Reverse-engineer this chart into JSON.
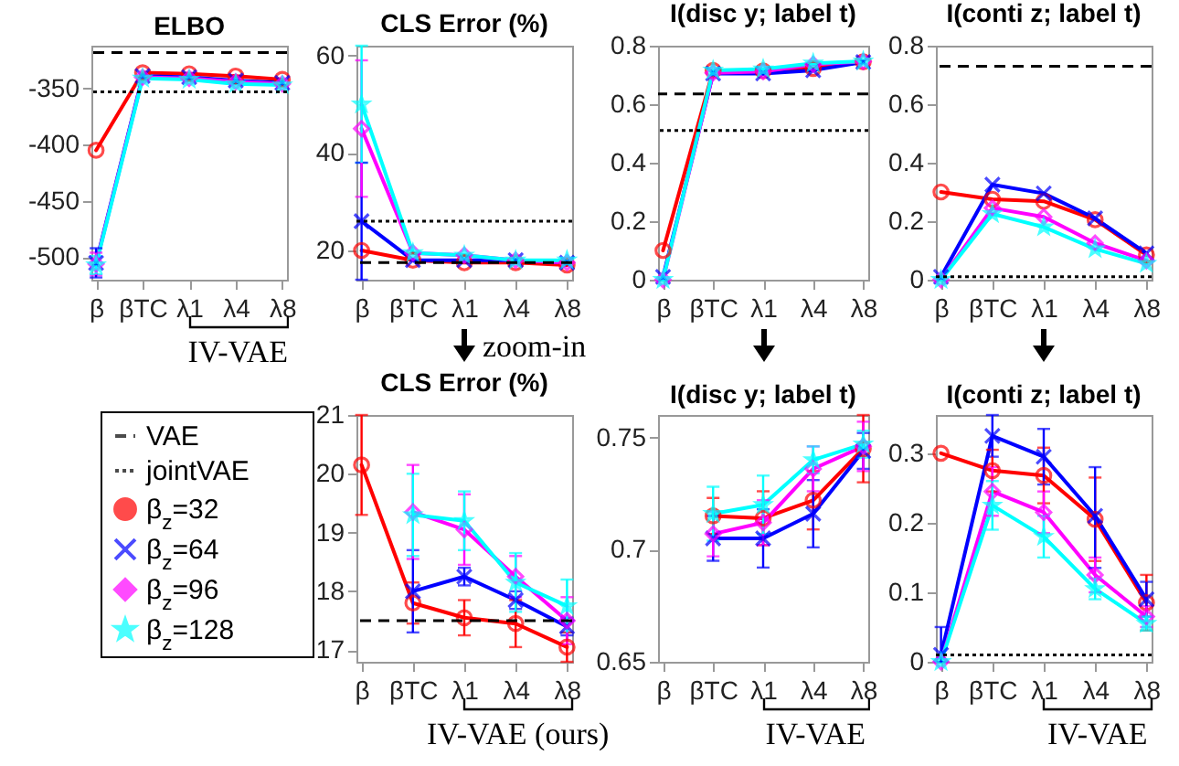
{
  "chart_data": [
    {
      "type": "line",
      "title": "ELBO",
      "categories": [
        "β",
        "βTC",
        "λ1",
        "λ4",
        "λ8"
      ],
      "ylim": [
        -520,
        -312
      ],
      "yticks": [
        -500,
        -450,
        -400,
        -350
      ],
      "annotations": [
        "IV-VAE"
      ],
      "ref_lines": [
        {
          "axis": "y",
          "value": -318,
          "color": "#000000",
          "line_style": "dashed"
        },
        {
          "axis": "y",
          "value": -353,
          "color": "#000000",
          "line_style": "dotted"
        }
      ],
      "series": [
        {
          "color": "#ff0000",
          "marker": "circle",
          "values": [
            -405,
            -336,
            -337,
            -339,
            -342
          ]
        },
        {
          "color": "#0000ff",
          "marker": "cross",
          "values": [
            -505,
            -339,
            -340,
            -343,
            -345
          ],
          "errors": [
            13,
            null,
            null,
            null,
            null
          ]
        },
        {
          "color": "#ff00ff",
          "marker": "diamond",
          "values": [
            -506,
            -340,
            -341,
            -344,
            -346
          ],
          "errors": [
            10,
            null,
            null,
            null,
            null
          ]
        },
        {
          "color": "#00ffff",
          "marker": "star",
          "values": [
            -507,
            -341,
            -342,
            -346,
            -347
          ],
          "errors": [
            8,
            null,
            null,
            null,
            null
          ]
        }
      ]
    },
    {
      "type": "line",
      "title": "CLS Error (%)",
      "categories": [
        "β",
        "βTC",
        "λ1",
        "λ4",
        "λ8"
      ],
      "ylim": [
        14,
        62
      ],
      "yticks": [
        20,
        40,
        60
      ],
      "annotations": [
        "zoom-in"
      ],
      "legend": "bottom left",
      "ref_lines": [
        {
          "axis": "y",
          "value": 17.5,
          "label": "VAE",
          "color": "#000000",
          "line_style": "dashed"
        },
        {
          "axis": "y",
          "value": 26,
          "label": "jointVAE",
          "color": "#000000",
          "line_style": "dotted"
        }
      ],
      "series": [
        {
          "name": "β$_{z}$=32",
          "color": "#ff0000",
          "marker": "circle",
          "values": [
            20,
            18,
            17.5,
            17.5,
            17
          ]
        },
        {
          "name": "β$_{z}$=64",
          "color": "#0000ff",
          "marker": "cross",
          "values": [
            26,
            18,
            18,
            18,
            17.5
          ],
          "errors": [
            12,
            null,
            null,
            null,
            null
          ]
        },
        {
          "name": "β$_{z}$=96",
          "color": "#ff00ff",
          "marker": "diamond",
          "values": [
            45,
            19.5,
            19,
            18,
            17.5
          ],
          "errors": [
            14,
            null,
            null,
            null,
            null
          ]
        },
        {
          "name": "β$_{z}$=128",
          "color": "#00ffff",
          "marker": "star",
          "values": [
            50,
            19.5,
            19,
            18,
            18
          ],
          "errors": [
            12,
            null,
            null,
            null,
            null
          ]
        }
      ]
    },
    {
      "type": "line",
      "title": "I(disc y; label t)",
      "categories": [
        "β",
        "βTC",
        "λ1",
        "λ4",
        "λ8"
      ],
      "ylim": [
        0,
        0.8
      ],
      "yticks": [
        0,
        0.2,
        0.4,
        0.6,
        0.8
      ],
      "ref_lines": [
        {
          "axis": "y",
          "value": 0.635,
          "color": "#000000",
          "line_style": "dashed"
        },
        {
          "axis": "y",
          "value": 0.51,
          "color": "#000000",
          "line_style": "dotted"
        }
      ],
      "series": [
        {
          "color": "#ff0000",
          "marker": "circle",
          "values": [
            0.1,
            0.715,
            0.714,
            0.722,
            0.745
          ]
        },
        {
          "color": "#0000ff",
          "marker": "cross",
          "values": [
            0.01,
            0.705,
            0.705,
            0.716,
            0.744
          ]
        },
        {
          "color": "#ff00ff",
          "marker": "diamond",
          "values": [
            0,
            0.707,
            0.712,
            0.736,
            0.746
          ]
        },
        {
          "color": "#00ffff",
          "marker": "star",
          "values": [
            0,
            0.716,
            0.72,
            0.74,
            0.747
          ]
        }
      ]
    },
    {
      "type": "line",
      "title": "I(conti z; label t)",
      "categories": [
        "β",
        "βTC",
        "λ1",
        "λ4",
        "λ8"
      ],
      "ylim": [
        0,
        0.8
      ],
      "yticks": [
        0,
        0.2,
        0.4,
        0.6,
        0.8
      ],
      "ref_lines": [
        {
          "axis": "y",
          "value": 0.73,
          "color": "#000000",
          "line_style": "dashed"
        },
        {
          "axis": "y",
          "value": 0.01,
          "color": "#000000",
          "line_style": "dotted"
        }
      ],
      "series": [
        {
          "color": "#ff0000",
          "marker": "circle",
          "values": [
            0.3,
            0.275,
            0.268,
            0.205,
            0.085
          ]
        },
        {
          "color": "#0000ff",
          "marker": "cross",
          "values": [
            0.01,
            0.325,
            0.295,
            0.21,
            0.09
          ]
        },
        {
          "color": "#ff00ff",
          "marker": "diamond",
          "values": [
            0,
            0.245,
            0.215,
            0.125,
            0.065
          ]
        },
        {
          "color": "#00ffff",
          "marker": "star",
          "values": [
            0,
            0.225,
            0.18,
            0.105,
            0.055
          ]
        }
      ]
    },
    {
      "type": "line",
      "title": "CLS Error (%)",
      "categories": [
        "β",
        "βTC",
        "λ1",
        "λ4",
        "λ8"
      ],
      "ylim": [
        16.8,
        21
      ],
      "yticks": [
        17,
        18,
        19,
        20,
        21
      ],
      "annotations": [
        "IV-VAE (ours)"
      ],
      "ref_lines": [
        {
          "axis": "y",
          "value": 17.5,
          "color": "#000000",
          "line_style": "dashed"
        }
      ],
      "series": [
        {
          "color": "#ff0000",
          "marker": "circle",
          "values": [
            20.15,
            17.8,
            17.55,
            17.45,
            17.05
          ],
          "errors": [
            0.85,
            0.35,
            0.3,
            0.4,
            0.25
          ]
        },
        {
          "color": "#0000ff",
          "marker": "cross",
          "values": [
            null,
            18.0,
            18.25,
            17.85,
            17.4
          ],
          "errors": [
            null,
            0.7,
            0.15,
            0.15,
            0.15
          ]
        },
        {
          "color": "#ff00ff",
          "marker": "diamond",
          "values": [
            null,
            19.35,
            19.05,
            18.25,
            17.5
          ],
          "errors": [
            null,
            0.8,
            0.6,
            0.35,
            0.4
          ]
        },
        {
          "color": "#00ffff",
          "marker": "star",
          "values": [
            null,
            19.3,
            19.2,
            18.15,
            17.75
          ],
          "errors": [
            null,
            0.7,
            0.5,
            0.5,
            0.45
          ]
        }
      ]
    },
    {
      "type": "line",
      "title": "I(disc y; label t)",
      "categories": [
        "β",
        "βTC",
        "λ1",
        "λ4",
        "λ8"
      ],
      "ylim": [
        0.65,
        0.76
      ],
      "yticks": [
        0.65,
        0.7,
        0.75
      ],
      "annotations": [
        "IV-VAE"
      ],
      "series": [
        {
          "color": "#ff0000",
          "marker": "circle",
          "values": [
            null,
            0.715,
            0.714,
            0.722,
            0.745
          ],
          "errors": [
            null,
            0.008,
            0.012,
            0.013,
            0.015
          ]
        },
        {
          "color": "#0000ff",
          "marker": "cross",
          "values": [
            null,
            0.705,
            0.705,
            0.716,
            0.744
          ],
          "errors": [
            null,
            0.01,
            0.013,
            0.015,
            0.008
          ]
        },
        {
          "color": "#ff00ff",
          "marker": "diamond",
          "values": [
            null,
            0.707,
            0.712,
            0.736,
            0.746
          ],
          "errors": [
            null,
            0.01,
            0.01,
            0.01,
            0.011
          ]
        },
        {
          "color": "#00ffff",
          "marker": "star",
          "values": [
            null,
            0.716,
            0.72,
            0.74,
            0.747
          ],
          "errors": [
            null,
            0.012,
            0.013,
            0.006,
            0.006
          ]
        }
      ]
    },
    {
      "type": "line",
      "title": "I(conti z; label t)",
      "categories": [
        "β",
        "βTC",
        "λ1",
        "λ4",
        "λ8"
      ],
      "ylim": [
        0,
        0.355
      ],
      "yticks": [
        0,
        0.1,
        0.2,
        0.3
      ],
      "annotations": [
        "IV-VAE"
      ],
      "ref_lines": [
        {
          "axis": "y",
          "value": 0.01,
          "color": "#000000",
          "line_style": "dotted"
        }
      ],
      "series": [
        {
          "color": "#ff0000",
          "marker": "circle",
          "values": [
            0.3,
            0.275,
            0.268,
            0.205,
            0.085
          ],
          "errors": [
            null,
            0.03,
            0.04,
            0.06,
            0.04
          ]
        },
        {
          "color": "#0000ff",
          "marker": "cross",
          "values": [
            0.01,
            0.325,
            0.295,
            0.21,
            0.09
          ],
          "errors": [
            [
              0,
              0.05
            ],
            0.03,
            0.04,
            [
              0.135,
              0.28
            ],
            0.025
          ]
        },
        {
          "color": "#ff00ff",
          "marker": "diamond",
          "values": [
            0,
            0.245,
            0.215,
            0.125,
            0.065
          ],
          "errors": [
            null,
            0.035,
            0.03,
            0.025,
            0.015
          ]
        },
        {
          "color": "#00ffff",
          "marker": "star",
          "values": [
            0,
            0.225,
            0.18,
            0.105,
            0.055
          ],
          "errors": [
            null,
            0.035,
            0.03,
            0.015,
            0.01
          ]
        }
      ]
    }
  ]
}
